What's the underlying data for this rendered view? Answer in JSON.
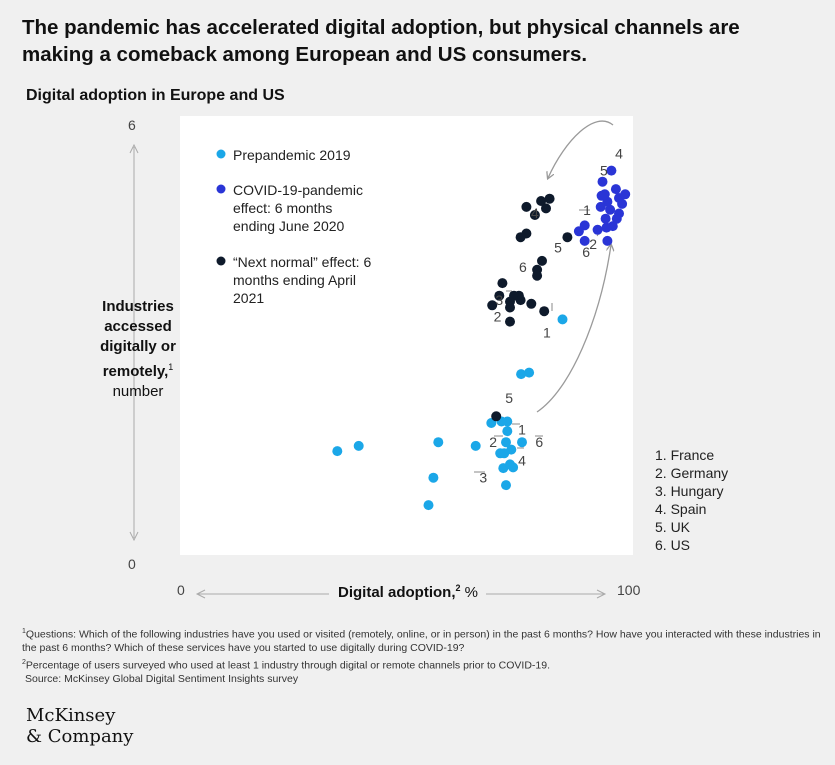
{
  "title": "The pandemic has accelerated digital adoption, but physical channels are making a comeback among European and US consumers.",
  "subtitle": "Digital adoption in Europe and US",
  "y_axis": {
    "label_bold": "Industries accessed digitally or remotely,",
    "label_sup": "1",
    "label_rest": "number",
    "tick_top": "6",
    "tick_bottom": "0"
  },
  "x_axis": {
    "label_bold": "Digital adoption,",
    "label_sup": "2",
    "label_rest": " %",
    "tick_left": "0",
    "tick_right": "100"
  },
  "colors": {
    "prepandemic": "#1ba7e8",
    "covid": "#2a35d6",
    "next_normal": "#0e1a2b",
    "arrow": "#9a9a9a"
  },
  "legend": [
    {
      "label": "Prepandemic 2019",
      "color": "#1ba7e8"
    },
    {
      "label": "COVID-19-pandemic effect: 6 months ending June 2020",
      "color": "#2a35d6"
    },
    {
      "label": "“Next normal” effect: 6 months ending April 2021",
      "color": "#0e1a2b"
    }
  ],
  "country_key": [
    "1. France",
    "2. Germany",
    "3. Hungary",
    "4. Spain",
    "5. UK",
    "6. US"
  ],
  "chart_data": {
    "type": "scatter",
    "title": "Digital adoption in Europe and US",
    "xlabel": "Digital adoption, %",
    "ylabel": "Industries accessed digitally or remotely, number",
    "xlim": [
      0,
      100
    ],
    "ylim": [
      0,
      6
    ],
    "series": [
      {
        "name": "Prepandemic 2019",
        "color": "#1ba7e8",
        "points": [
          {
            "x": 34.9,
            "y": 1.58
          },
          {
            "x": 39.7,
            "y": 1.65
          },
          {
            "x": 57.6,
            "y": 1.7
          },
          {
            "x": 56.5,
            "y": 1.22
          },
          {
            "x": 55.4,
            "y": 0.85
          },
          {
            "x": 66.0,
            "y": 1.65
          },
          {
            "x": 69.5,
            "y": 1.96
          },
          {
            "x": 72.2,
            "y": 1.35
          },
          {
            "x": 73.1,
            "y": 1.98
          },
          {
            "x": 73.1,
            "y": 1.85
          },
          {
            "x": 72.8,
            "y": 1.7
          },
          {
            "x": 72.4,
            "y": 1.55
          },
          {
            "x": 74.0,
            "y": 1.6
          },
          {
            "x": 73.7,
            "y": 1.4
          },
          {
            "x": 74.4,
            "y": 1.36
          },
          {
            "x": 76.4,
            "y": 1.7
          },
          {
            "x": 71.5,
            "y": 1.55
          },
          {
            "x": 71.8,
            "y": 1.98
          },
          {
            "x": 72.8,
            "y": 1.12
          },
          {
            "x": 76.2,
            "y": 2.62
          },
          {
            "x": 78.0,
            "y": 2.64
          },
          {
            "x": 85.5,
            "y": 3.36
          }
        ]
      },
      {
        "name": "COVID-19-pandemic effect: 6 months ending June 2020",
        "color": "#2a35d6",
        "points": [
          {
            "x": 96.5,
            "y": 5.37
          },
          {
            "x": 97.5,
            "y": 5.12
          },
          {
            "x": 98.2,
            "y": 5.0
          },
          {
            "x": 96.2,
            "y": 4.84
          },
          {
            "x": 99.6,
            "y": 5.05
          },
          {
            "x": 98.9,
            "y": 4.92
          },
          {
            "x": 98.2,
            "y": 4.79
          },
          {
            "x": 97.7,
            "y": 4.72
          },
          {
            "x": 96.8,
            "y": 4.62
          },
          {
            "x": 95.2,
            "y": 4.72
          },
          {
            "x": 95.4,
            "y": 4.6
          },
          {
            "x": 94.1,
            "y": 4.88
          },
          {
            "x": 93.4,
            "y": 4.57
          },
          {
            "x": 90.5,
            "y": 4.63
          },
          {
            "x": 89.2,
            "y": 4.55
          },
          {
            "x": 90.5,
            "y": 4.42
          },
          {
            "x": 95.6,
            "y": 4.42
          },
          {
            "x": 94.3,
            "y": 5.03
          },
          {
            "x": 95.6,
            "y": 4.95
          },
          {
            "x": 94.5,
            "y": 5.22
          },
          {
            "x": 95.0,
            "y": 5.05
          }
        ]
      },
      {
        "name": "“Next normal” effect: 6 months ending April 2021",
        "color": "#0e1a2b",
        "points": [
          {
            "x": 80.7,
            "y": 4.96
          },
          {
            "x": 82.6,
            "y": 4.99
          },
          {
            "x": 81.8,
            "y": 4.86
          },
          {
            "x": 77.4,
            "y": 4.88
          },
          {
            "x": 79.3,
            "y": 4.77
          },
          {
            "x": 77.4,
            "y": 4.52
          },
          {
            "x": 76.1,
            "y": 4.47
          },
          {
            "x": 80.9,
            "y": 4.15
          },
          {
            "x": 79.8,
            "y": 4.03
          },
          {
            "x": 79.8,
            "y": 3.95
          },
          {
            "x": 86.6,
            "y": 4.47
          },
          {
            "x": 72.0,
            "y": 3.85
          },
          {
            "x": 75.7,
            "y": 3.68
          },
          {
            "x": 74.6,
            "y": 3.68
          },
          {
            "x": 73.7,
            "y": 3.6
          },
          {
            "x": 76.1,
            "y": 3.62
          },
          {
            "x": 73.7,
            "y": 3.52
          },
          {
            "x": 78.5,
            "y": 3.57
          },
          {
            "x": 81.4,
            "y": 3.47
          },
          {
            "x": 69.7,
            "y": 3.55
          },
          {
            "x": 73.7,
            "y": 3.33
          },
          {
            "x": 71.3,
            "y": 3.68
          },
          {
            "x": 70.6,
            "y": 2.05
          }
        ]
      }
    ],
    "annotations": [
      {
        "text": "5",
        "x": 73.5,
        "y": 2.3
      },
      {
        "text": "1",
        "x": 76.4,
        "y": 1.87
      },
      {
        "text": "2",
        "x": 69.9,
        "y": 1.7
      },
      {
        "text": "6",
        "x": 80.3,
        "y": 1.7
      },
      {
        "text": "4",
        "x": 76.4,
        "y": 1.45
      },
      {
        "text": "3",
        "x": 67.7,
        "y": 1.22
      },
      {
        "text": "4",
        "x": 98.2,
        "y": 5.6
      },
      {
        "text": "5",
        "x": 94.8,
        "y": 5.37
      },
      {
        "text": "1",
        "x": 91.0,
        "y": 4.84
      },
      {
        "text": "2",
        "x": 92.4,
        "y": 4.38
      },
      {
        "text": "6",
        "x": 90.8,
        "y": 4.27
      },
      {
        "text": "4",
        "x": 79.3,
        "y": 4.8
      },
      {
        "text": "5",
        "x": 84.5,
        "y": 4.33
      },
      {
        "text": "6",
        "x": 76.6,
        "y": 4.07
      },
      {
        "text": "3",
        "x": 71.3,
        "y": 3.62
      },
      {
        "text": "2",
        "x": 70.9,
        "y": 3.4
      },
      {
        "text": "1",
        "x": 82.0,
        "y": 3.18
      }
    ]
  },
  "footnotes": {
    "note1_sup": "1",
    "note1": "Questions: Which of the following industries have you used or visited (remotely, online, or in person) in the past 6 months? How have you interacted with these industries in the past 6 months? Which of these services have you started to use digitally during COVID-19?",
    "note2_sup": "2",
    "note2": "Percentage of users surveyed who used at least 1 industry through digital or remote channels prior to COVID-19.",
    "source": "Source: McKinsey Global Digital Sentiment Insights survey"
  },
  "logo": {
    "line1": "McKinsey",
    "line2": "& Company"
  }
}
